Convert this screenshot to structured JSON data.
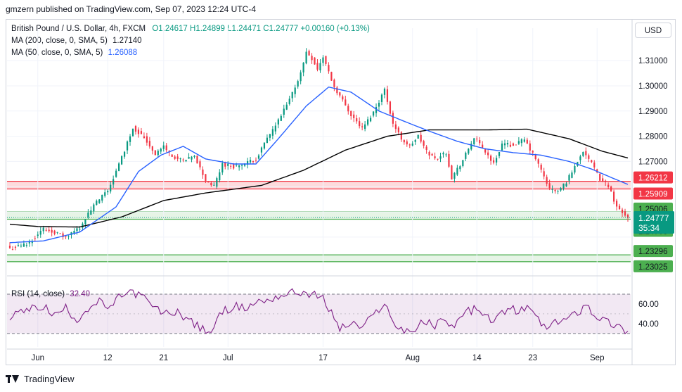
{
  "header": {
    "publish_text": "gmzern published on TradingView.com, Sep 07, 2023 12:24 UTC-4"
  },
  "legend": {
    "symbol": "British Pound / U.S. Dollar, 4h, FXCM",
    "open": "O1.24617",
    "high": "H1.24899",
    "low": "L1.24471",
    "close": "C1.24777",
    "change": "+0.00160 (+0.13%)",
    "ma200_label": "MA (200, close, 0, SMA, 5)",
    "ma200_value": "1.27140",
    "ma50_label": "MA (50, close, 0, SMA, 5)",
    "ma50_value": "1.26088",
    "rsi_label": "RSI (14, close)",
    "rsi_value": "32.40"
  },
  "currency_button": "USD",
  "footer": {
    "brand": "TradingView"
  },
  "colors": {
    "up": "#089981",
    "down": "#f23645",
    "ma200": "#000000",
    "ma50": "#2962ff",
    "rsi": "#7e1f86",
    "resistance": "#f23645",
    "support": "#4caf50"
  },
  "chart_data": {
    "type": "candlestick",
    "price_ylim": [
      1.2302,
      1.3145
    ],
    "price_ticks": [
      "1.31000",
      "1.30000",
      "1.29000",
      "1.28000",
      "1.27000",
      "1.25006",
      "1.24708"
    ],
    "time_ticks": [
      "Jun",
      "12",
      "21",
      "Jul",
      "17",
      "Aug",
      "14",
      "23",
      "Sep"
    ],
    "time_tick_index": [
      10,
      35,
      55,
      78,
      112,
      144,
      167,
      187,
      210
    ],
    "last_price": {
      "value": "1.24777",
      "countdown": "35:34"
    },
    "zones": [
      {
        "kind": "resistance",
        "top": 1.26212,
        "bottom": 1.25909
      },
      {
        "kind": "support",
        "top": 1.25006,
        "bottom": 1.24708
      },
      {
        "kind": "support",
        "top": 1.23296,
        "bottom": 1.23025
      }
    ],
    "zone_labels": [
      "1.26212",
      "1.25909",
      "1.25006",
      "1.24708",
      "1.23296",
      "1.23025"
    ],
    "close_anchors": [
      [
        0,
        1.2355
      ],
      [
        6,
        1.2372
      ],
      [
        12,
        1.2432
      ],
      [
        16,
        1.242
      ],
      [
        20,
        1.2398
      ],
      [
        25,
        1.244
      ],
      [
        30,
        1.2525
      ],
      [
        35,
        1.2585
      ],
      [
        38,
        1.266
      ],
      [
        41,
        1.2745
      ],
      [
        44,
        1.2835
      ],
      [
        48,
        1.2795
      ],
      [
        52,
        1.273
      ],
      [
        55,
        1.276
      ],
      [
        58,
        1.272
      ],
      [
        62,
        1.27
      ],
      [
        66,
        1.272
      ],
      [
        70,
        1.2625
      ],
      [
        73,
        1.26
      ],
      [
        76,
        1.269
      ],
      [
        80,
        1.268
      ],
      [
        84,
        1.269
      ],
      [
        88,
        1.271
      ],
      [
        92,
        1.279
      ],
      [
        96,
        1.286
      ],
      [
        100,
        1.2945
      ],
      [
        104,
        1.305
      ],
      [
        106,
        1.3135
      ],
      [
        108,
        1.311
      ],
      [
        110,
        1.3065
      ],
      [
        112,
        1.3115
      ],
      [
        116,
        1.2995
      ],
      [
        118,
        1.296
      ],
      [
        122,
        1.2885
      ],
      [
        126,
        1.283
      ],
      [
        130,
        1.2895
      ],
      [
        134,
        1.2985
      ],
      [
        137,
        1.285
      ],
      [
        140,
        1.279
      ],
      [
        143,
        1.276
      ],
      [
        146,
        1.28
      ],
      [
        149,
        1.274
      ],
      [
        152,
        1.271
      ],
      [
        156,
        1.2735
      ],
      [
        158,
        1.2635
      ],
      [
        162,
        1.2705
      ],
      [
        166,
        1.2795
      ],
      [
        170,
        1.274
      ],
      [
        173,
        1.269
      ],
      [
        176,
        1.277
      ],
      [
        180,
        1.2765
      ],
      [
        184,
        1.2785
      ],
      [
        188,
        1.271
      ],
      [
        191,
        1.264
      ],
      [
        193,
        1.259
      ],
      [
        196,
        1.258
      ],
      [
        199,
        1.262
      ],
      [
        202,
        1.268
      ],
      [
        205,
        1.2745
      ],
      [
        208,
        1.269
      ],
      [
        211,
        1.263
      ],
      [
        214,
        1.2605
      ],
      [
        217,
        1.252
      ],
      [
        219,
        1.25
      ],
      [
        221,
        1.2478
      ]
    ],
    "ma200_anchors": [
      [
        0,
        1.2451
      ],
      [
        10,
        1.2442
      ],
      [
        25,
        1.244
      ],
      [
        40,
        1.248
      ],
      [
        55,
        1.2545
      ],
      [
        70,
        1.2575
      ],
      [
        90,
        1.2605
      ],
      [
        105,
        1.2665
      ],
      [
        120,
        1.2745
      ],
      [
        135,
        1.28
      ],
      [
        150,
        1.2825
      ],
      [
        170,
        1.2825
      ],
      [
        185,
        1.2828
      ],
      [
        200,
        1.279
      ],
      [
        212,
        1.274
      ],
      [
        221,
        1.2714
      ]
    ],
    "ma50_anchors": [
      [
        0,
        1.2378
      ],
      [
        12,
        1.2385
      ],
      [
        25,
        1.242
      ],
      [
        38,
        1.252
      ],
      [
        46,
        1.266
      ],
      [
        54,
        1.2725
      ],
      [
        62,
        1.276
      ],
      [
        70,
        1.271
      ],
      [
        80,
        1.269
      ],
      [
        88,
        1.269
      ],
      [
        96,
        1.279
      ],
      [
        106,
        1.292
      ],
      [
        114,
        1.2995
      ],
      [
        122,
        1.2975
      ],
      [
        132,
        1.29
      ],
      [
        142,
        1.2855
      ],
      [
        150,
        1.282
      ],
      [
        160,
        1.278
      ],
      [
        170,
        1.275
      ],
      [
        180,
        1.2735
      ],
      [
        190,
        1.2725
      ],
      [
        200,
        1.27
      ],
      [
        208,
        1.267
      ],
      [
        216,
        1.2632
      ],
      [
        221,
        1.2609
      ]
    ],
    "rsi": {
      "ylim": [
        22,
        80
      ],
      "levels": [
        70,
        30
      ],
      "ticks": [
        "60.00",
        "40.00"
      ],
      "anchors": [
        [
          0,
          48
        ],
        [
          4,
          52
        ],
        [
          8,
          55
        ],
        [
          12,
          58
        ],
        [
          16,
          48
        ],
        [
          20,
          56
        ],
        [
          24,
          44
        ],
        [
          28,
          56
        ],
        [
          32,
          62
        ],
        [
          36,
          55
        ],
        [
          40,
          70
        ],
        [
          44,
          72
        ],
        [
          48,
          66
        ],
        [
          52,
          55
        ],
        [
          56,
          50
        ],
        [
          60,
          52
        ],
        [
          64,
          44
        ],
        [
          68,
          35
        ],
        [
          72,
          32
        ],
        [
          76,
          52
        ],
        [
          80,
          58
        ],
        [
          84,
          55
        ],
        [
          88,
          62
        ],
        [
          92,
          64
        ],
        [
          96,
          68
        ],
        [
          100,
          71
        ],
        [
          104,
          72
        ],
        [
          108,
          70
        ],
        [
          112,
          65
        ],
        [
          116,
          46
        ],
        [
          118,
          35
        ],
        [
          122,
          40
        ],
        [
          126,
          36
        ],
        [
          130,
          48
        ],
        [
          134,
          62
        ],
        [
          137,
          40
        ],
        [
          140,
          35
        ],
        [
          144,
          32
        ],
        [
          148,
          42
        ],
        [
          152,
          38
        ],
        [
          156,
          46
        ],
        [
          158,
          36
        ],
        [
          162,
          50
        ],
        [
          166,
          55
        ],
        [
          170,
          46
        ],
        [
          174,
          44
        ],
        [
          178,
          56
        ],
        [
          182,
          52
        ],
        [
          186,
          56
        ],
        [
          189,
          44
        ],
        [
          192,
          34
        ],
        [
          196,
          42
        ],
        [
          200,
          46
        ],
        [
          204,
          54
        ],
        [
          206,
          62
        ],
        [
          208,
          52
        ],
        [
          212,
          44
        ],
        [
          215,
          40
        ],
        [
          218,
          36
        ],
        [
          221,
          32.4
        ]
      ]
    }
  }
}
